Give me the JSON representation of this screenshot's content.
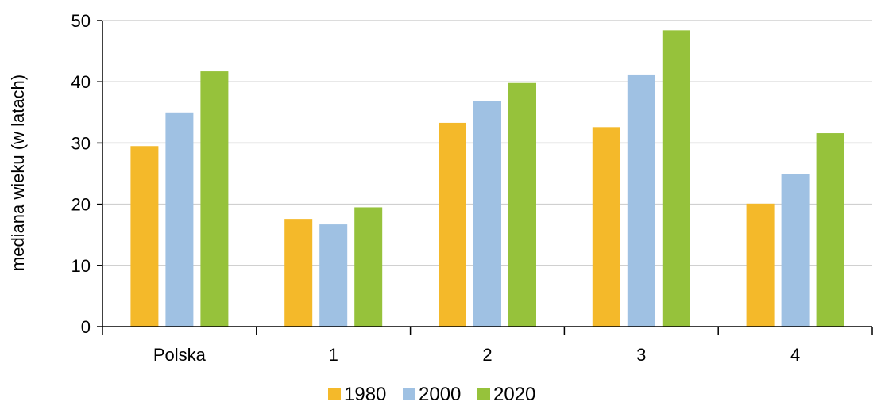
{
  "chart_data": {
    "type": "bar",
    "title": "",
    "xlabel": "",
    "ylabel": "mediana wieku (w latach)",
    "ylim": [
      0,
      50
    ],
    "yticks": [
      0,
      10,
      20,
      30,
      40,
      50
    ],
    "grid": true,
    "legend_position": "bottom",
    "categories": [
      "Polska",
      "1",
      "2",
      "3",
      "4"
    ],
    "series": [
      {
        "name": "1980",
        "color": "#f4b92a",
        "values": [
          29.5,
          17.6,
          33.3,
          32.6,
          20.1
        ]
      },
      {
        "name": "2000",
        "color": "#9fc1e3",
        "values": [
          35.0,
          16.7,
          36.9,
          41.2,
          24.9
        ]
      },
      {
        "name": "2020",
        "color": "#96c23b",
        "values": [
          41.7,
          19.5,
          39.8,
          48.4,
          31.6
        ]
      }
    ]
  }
}
